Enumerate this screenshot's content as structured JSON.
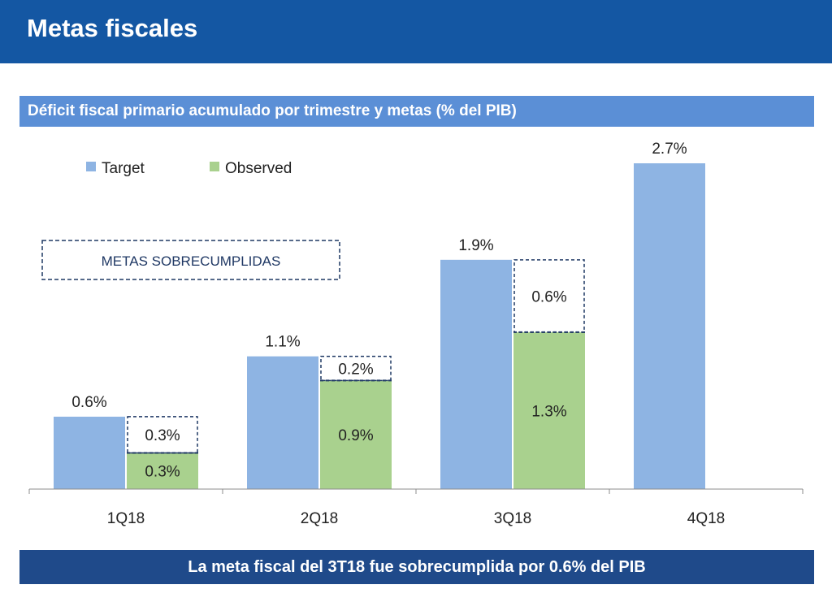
{
  "header": {
    "title": "Metas fiscales"
  },
  "subtitle": "Déficit fiscal primario acumulado por trimestre y  metas (% del PIB)",
  "footer": "La meta fiscal del 3T18 fue sobrecumplida por 0.6% del PIB",
  "annotation": "METAS SOBRECUMPLIDAS",
  "colors": {
    "header": "#1457a3",
    "subtitle_bar": "#5b8fd6",
    "footer_bar": "#1f4a8a",
    "target": "#8eb4e3",
    "observed": "#a9d18e",
    "dashed_border": "#1f3864"
  },
  "chart_data": {
    "type": "bar",
    "title": "Déficit fiscal primario acumulado por trimestre y  metas (% del PIB)",
    "categories": [
      "1Q18",
      "2Q18",
      "3Q18",
      "4Q18"
    ],
    "series": [
      {
        "name": "Target",
        "values": [
          0.6,
          1.1,
          1.9,
          2.7
        ],
        "labels": [
          "0.6%",
          "1.1%",
          "1.9%",
          "2.7%"
        ]
      },
      {
        "name": "Observed",
        "values": [
          0.3,
          0.9,
          1.3,
          null
        ],
        "labels": [
          "0.3%",
          "0.9%",
          "1.3%",
          ""
        ]
      }
    ],
    "overachievement": {
      "values": [
        0.3,
        0.2,
        0.6,
        null
      ],
      "labels": [
        "0.3%",
        "0.2%",
        "0.6%",
        ""
      ]
    },
    "ylim": [
      0,
      2.7
    ],
    "grid": false,
    "legend": "top-left"
  }
}
